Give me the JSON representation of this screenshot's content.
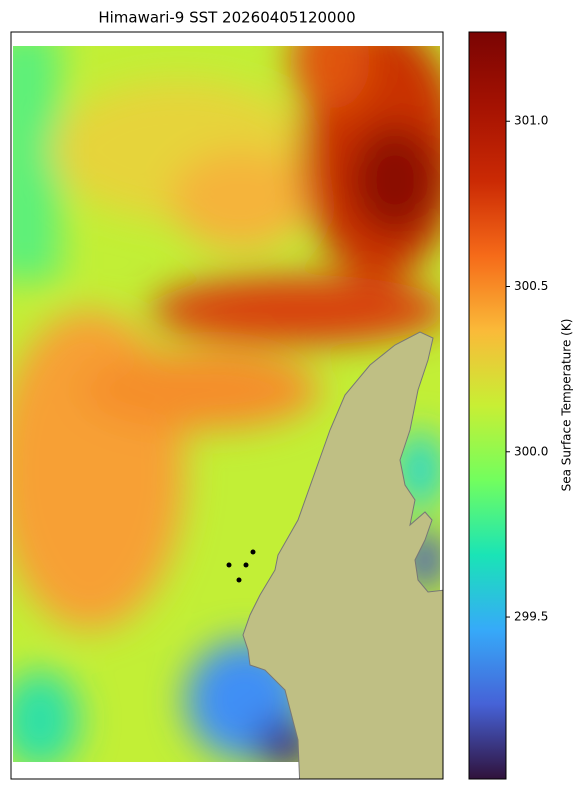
{
  "title": "Himawari-9 SST 20260405120000",
  "colorbar": {
    "label": "Sea Surface Temperature (K)",
    "lim": [
      299.01,
      301.27
    ],
    "ticks": [
      299.5,
      {
        "value": 300,
        "label": "300.0"
      },
      300.5,
      {
        "value": 301,
        "label": "301.0"
      }
    ]
  }
}
